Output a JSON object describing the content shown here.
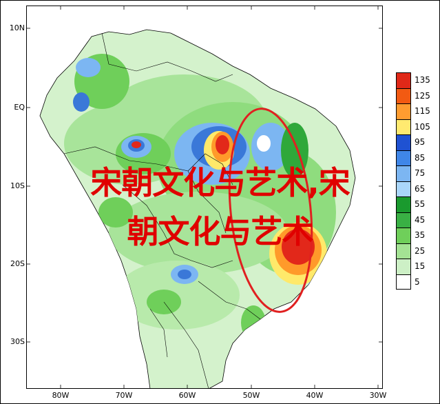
{
  "map": {
    "lat_labels": [
      "10N",
      "EQ",
      "10S",
      "20S",
      "30S"
    ],
    "lon_labels": [
      "80W",
      "70W",
      "60W",
      "50W",
      "40W",
      "30W"
    ],
    "colors": {
      "land_base": "#c9f0c0",
      "green_light": "#a8e49a",
      "green_mid": "#6fcf5a",
      "green_dark": "#2fa83a",
      "blue_light": "#a6ccf2",
      "blue_dark": "#3a78d8",
      "yellow": "#ffe96a",
      "orange": "#ff9a2a",
      "red": "#e2281a",
      "outline_circle": "#e02020"
    }
  },
  "legend": {
    "items": [
      {
        "label": "135",
        "color": "#e02818"
      },
      {
        "label": "125",
        "color": "#f25a12"
      },
      {
        "label": "115",
        "color": "#ff9c30"
      },
      {
        "label": "105",
        "color": "#ffea70"
      },
      {
        "label": "95",
        "color": "#1f52d2"
      },
      {
        "label": "85",
        "color": "#3f86e8"
      },
      {
        "label": "75",
        "color": "#7cb6f2"
      },
      {
        "label": "65",
        "color": "#aad6fa"
      },
      {
        "label": "55",
        "color": "#1a9a2e"
      },
      {
        "label": "45",
        "color": "#39b044"
      },
      {
        "label": "35",
        "color": "#6fcf5a"
      },
      {
        "label": "25",
        "color": "#a4e394"
      },
      {
        "label": "15",
        "color": "#cdf0c6"
      },
      {
        "label": "5",
        "color": "#ffffff"
      }
    ]
  },
  "overlay": {
    "line1": "宋朝文化与艺术,宋",
    "line2": "朝文化与艺术"
  }
}
